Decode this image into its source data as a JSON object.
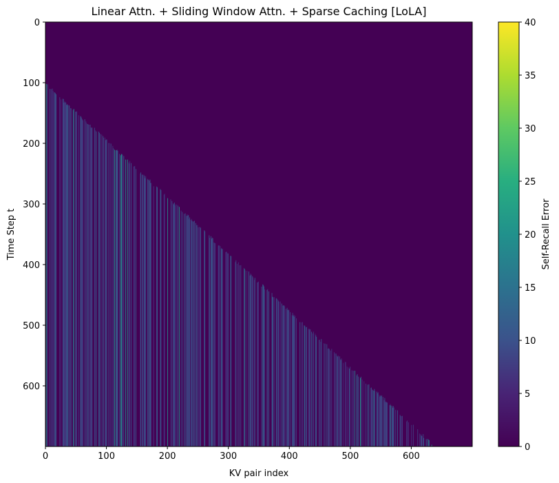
{
  "chart_data": {
    "type": "heatmap",
    "title": "Linear Attn. + Sliding Window Attn. + Sparse Caching [LoLA]",
    "xlabel": "KV pair index",
    "ylabel": "Time Step t",
    "xlim": [
      0,
      700
    ],
    "ylim": [
      700,
      0
    ],
    "x_ticks": [
      "0",
      "100",
      "200",
      "300",
      "400",
      "500",
      "600"
    ],
    "y_ticks": [
      "0",
      "100",
      "200",
      "300",
      "400",
      "500",
      "600"
    ],
    "colormap": "viridis",
    "colorbar": {
      "label": "Self-Recall Error",
      "range": [
        0,
        40
      ],
      "ticks": [
        "0",
        "5",
        "10",
        "15",
        "20",
        "25",
        "30",
        "35",
        "40"
      ]
    },
    "upper_triangle_value": 0,
    "diagonal": {
      "t_start_approx": 105,
      "slope_approx": 0.905,
      "kv_end_at_last_step_approx": 635
    },
    "lower_region": {
      "description_values": "vertical streaks per KV index; typical error 5–12, occasional 15–22",
      "typical_range": [
        5,
        12
      ],
      "peak_range": [
        15,
        22
      ]
    }
  }
}
